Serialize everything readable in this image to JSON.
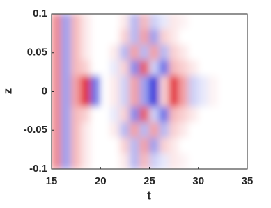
{
  "chart_data": {
    "type": "heatmap",
    "xlabel": "t",
    "ylabel": "z",
    "xlim": [
      15,
      35
    ],
    "ylim": [
      -0.1,
      0.1
    ],
    "xticks": [
      15,
      20,
      25,
      30,
      35
    ],
    "yticks": [
      -0.1,
      -0.05,
      0,
      0.05,
      0.1
    ],
    "x": [
      15.5,
      16.5,
      17.5,
      18.5,
      19.5,
      20.5,
      21.5,
      22.5,
      23.5,
      24.5,
      25.5,
      26.5,
      27.5,
      28.5,
      29.5,
      30.5,
      31.5,
      32.5,
      33.5,
      34.5
    ],
    "y": [
      0.09,
      0.07,
      0.05,
      0.03,
      0.01,
      -0.01,
      -0.03,
      -0.05,
      -0.07,
      -0.09
    ],
    "clim": [
      -1,
      1
    ],
    "colors": {
      "negative": "#0a14d8",
      "zero": "#ffffff",
      "positive": "#e0141e"
    },
    "values": [
      [
        0.5,
        -0.4,
        0.3,
        0.1,
        0,
        0,
        0,
        0.1,
        -0.3,
        0.3,
        -0.2,
        -0.1,
        0.1,
        0.05,
        0,
        0,
        0,
        0,
        0,
        0
      ],
      [
        0.5,
        -0.4,
        0.3,
        0.1,
        0,
        0,
        0,
        0.2,
        -0.3,
        0.4,
        -0.4,
        0.2,
        0.1,
        0,
        0,
        0,
        0,
        0,
        0,
        0
      ],
      [
        0.5,
        -0.4,
        0.3,
        0.1,
        0,
        0,
        0.1,
        -0.3,
        0.4,
        -0.3,
        0.4,
        -0.3,
        0.2,
        0.1,
        0,
        0,
        0,
        0,
        0,
        0
      ],
      [
        0.5,
        -0.4,
        0.3,
        0.2,
        0,
        0,
        -0.1,
        0.2,
        -0.5,
        0.7,
        -0.2,
        -0.6,
        0.3,
        0.2,
        0.1,
        0,
        0,
        0,
        0,
        0
      ],
      [
        0.5,
        -0.4,
        0.4,
        0.9,
        -0.6,
        0,
        0.1,
        -0.2,
        0.4,
        -0.4,
        -0.9,
        0.2,
        0.9,
        0.4,
        -0.2,
        -0.1,
        0.05,
        0,
        0,
        0
      ],
      [
        0.5,
        -0.4,
        0.4,
        0.9,
        -0.6,
        0,
        0.1,
        -0.2,
        0.4,
        -0.4,
        -0.9,
        0.2,
        0.9,
        0.4,
        -0.2,
        -0.1,
        0.05,
        0,
        0,
        0
      ],
      [
        0.5,
        -0.4,
        0.3,
        0.2,
        0,
        0,
        -0.1,
        0.2,
        -0.5,
        0.7,
        -0.2,
        -0.6,
        0.3,
        0.2,
        0.1,
        0,
        0,
        0,
        0,
        0
      ],
      [
        0.5,
        -0.4,
        0.3,
        0.1,
        0,
        0,
        0.1,
        -0.3,
        0.4,
        -0.3,
        0.4,
        -0.3,
        0.2,
        0.1,
        0,
        0,
        0,
        0,
        0,
        0
      ],
      [
        0.5,
        -0.4,
        0.3,
        0.1,
        0,
        0,
        0,
        0.2,
        -0.3,
        0.4,
        -0.4,
        0.2,
        0.1,
        0,
        0,
        0,
        0,
        0,
        0,
        0
      ],
      [
        0.5,
        -0.4,
        0.3,
        0.1,
        0,
        0,
        0,
        0.1,
        -0.3,
        0.3,
        -0.2,
        -0.1,
        0.1,
        0.05,
        0,
        0,
        0,
        0,
        0,
        0
      ]
    ]
  }
}
